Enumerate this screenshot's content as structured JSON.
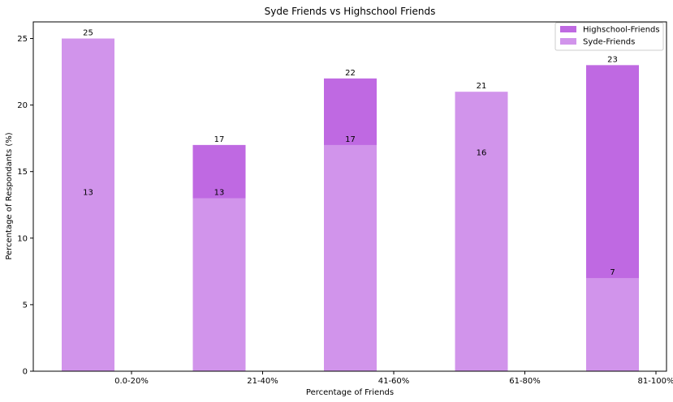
{
  "chart_data": {
    "type": "bar",
    "title": "Syde Friends vs Highschool Friends",
    "xlabel": "Percentage of Friends",
    "ylabel": "Percentage of Respondants (%)",
    "categories": [
      "0.0-20%",
      "21-40%",
      "41-60%",
      "61-80%",
      "81-100%"
    ],
    "ylim": [
      0,
      26.25
    ],
    "yticks": [
      0,
      5,
      10,
      15,
      20,
      25
    ],
    "grid": false,
    "legend_position": "top-right",
    "series": [
      {
        "name": "Highschool-Friends",
        "values": [
          13,
          17,
          22,
          16,
          23
        ],
        "color": "#bf69e2"
      },
      {
        "name": "Syde-Friends",
        "values": [
          25,
          13,
          17,
          21,
          7
        ],
        "color": "#d194eb"
      }
    ],
    "tick_labels": [
      "0",
      "5",
      "10",
      "15",
      "20",
      "25"
    ],
    "data_labels": {
      "highschool": [
        "13",
        "17",
        "22",
        "16",
        "23"
      ],
      "syde": [
        "25",
        "13",
        "17",
        "21",
        "7"
      ]
    }
  }
}
